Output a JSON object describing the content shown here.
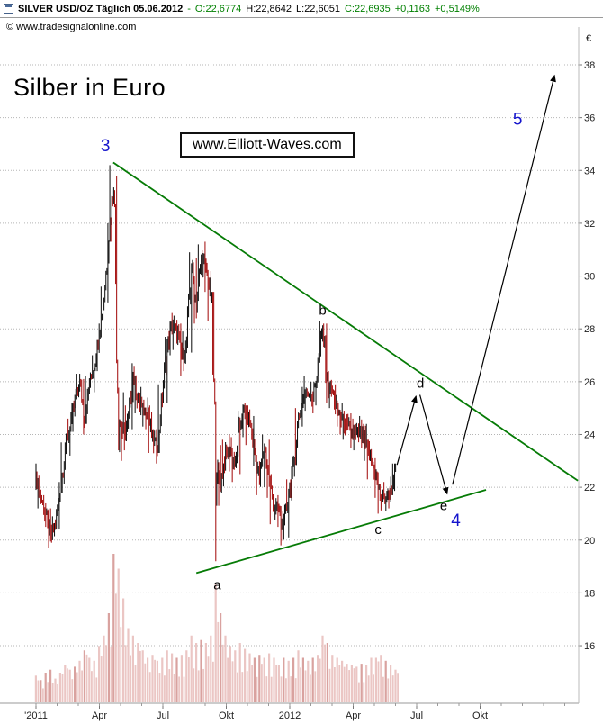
{
  "header": {
    "title": "SILVER USD/OZ Täglich 05.06.2012",
    "separator": "-",
    "open": "O:22,6774",
    "high": "H:22,8642",
    "low": "L:22,6051",
    "close": "C:22,6935",
    "change_abs": "+0,1163",
    "change_pct": "+0,5149%"
  },
  "copyright": "© www.tradesignalonline.com",
  "chart_title": "Silber in Euro",
  "watermark": "www.Elliott-Waves.com",
  "colors": {
    "up_green": "#008000",
    "wave_blue": "#1414cc",
    "trend_green": "#067b06",
    "candle_down_red": "#a51212",
    "candle_black": "#141414",
    "volume_pink": "#ebc6c4",
    "volume_pink_dark": "#d9a29f"
  },
  "axes": {
    "currency_symbol": "€",
    "y_ticks": [
      38,
      36,
      34,
      32,
      30,
      28,
      26,
      24,
      22,
      20,
      18,
      16
    ],
    "x_ticks": [
      "'2011",
      "Apr",
      "Jul",
      "Okt",
      "2012",
      "Apr",
      "Jul",
      "Okt"
    ]
  },
  "chart_data": {
    "type": "candlestick",
    "instrument": "SILVER USD/OZ",
    "quote_currency": "EUR",
    "timeframe": "Täglich",
    "last_bar": {
      "date": "05.06.2012",
      "open": 22.6774,
      "high": 22.8642,
      "low": 22.6051,
      "close": 22.6935,
      "change": 0.1163,
      "change_pct": 0.5149
    },
    "ylim": [
      15.5,
      38.8
    ],
    "x_start": "2011-01",
    "x_end_visible": "2012-12",
    "weekly": {
      "close": [
        22.4,
        21.6,
        21.0,
        20.1,
        20.6,
        21.9,
        23.4,
        24.3,
        25.2,
        26.0,
        24.6,
        25.9,
        26.6,
        27.8,
        29.2,
        31.5,
        33.6,
        24.7,
        24.0,
        24.5,
        26.3,
        25.3,
        24.9,
        24.9,
        23.8,
        23.5,
        25.5,
        27.3,
        28.2,
        27.9,
        26.9,
        27.4,
        30.4,
        28.9,
        30.6,
        30.2,
        29.3,
        22.7,
        22.2,
        23.2,
        23.4,
        22.8,
        24.5,
        24.9,
        24.5,
        23.3,
        22.3,
        23.6,
        22.3,
        21.2,
        21.1,
        20.4,
        21.9,
        22.7,
        24.6,
        25.4,
        25.6,
        25.4,
        26.5,
        28.0,
        25.9,
        25.6,
        24.9,
        24.6,
        24.3,
        24.1,
        24.0,
        24.1,
        23.6,
        23.0,
        22.4,
        21.5,
        21.6,
        21.8,
        22.7
      ],
      "high": [
        22.9,
        22.6,
        21.7,
        21.2,
        20.9,
        22.2,
        23.7,
        24.6,
        25.5,
        26.3,
        26.1,
        26.2,
        27.0,
        28.2,
        29.6,
        32.0,
        34.2,
        33.8,
        25.6,
        25.1,
        26.7,
        26.6,
        25.8,
        25.4,
        25.1,
        24.2,
        25.9,
        27.7,
        28.6,
        28.5,
        28.2,
        27.9,
        30.9,
        30.7,
        31.2,
        31.3,
        30.5,
        29.4,
        23.6,
        23.8,
        24.0,
        23.9,
        24.9,
        25.2,
        25.1,
        24.7,
        23.5,
        24.0,
        23.8,
        22.5,
        21.7,
        21.3,
        22.3,
        23.2,
        25.0,
        25.8,
        26.2,
        26.0,
        26.9,
        28.3,
        28.2,
        26.4,
        25.9,
        25.2,
        24.9,
        24.8,
        24.6,
        24.7,
        24.4,
        23.8,
        23.1,
        22.6,
        22.2,
        22.4,
        22.9
      ],
      "low": [
        21.9,
        21.2,
        20.5,
        19.7,
        19.9,
        20.4,
        21.8,
        23.2,
        24.1,
        25.0,
        24.0,
        24.4,
        25.6,
        26.4,
        27.6,
        29.0,
        31.3,
        23.4,
        23.0,
        23.4,
        24.2,
        24.8,
        24.3,
        24.2,
        23.3,
        22.9,
        23.3,
        25.2,
        27.0,
        27.2,
        26.2,
        26.4,
        27.1,
        28.2,
        28.6,
        29.4,
        28.3,
        19.2,
        21.3,
        21.8,
        22.6,
        22.2,
        22.5,
        23.9,
        23.6,
        22.8,
        21.7,
        22.0,
        21.6,
        20.6,
        20.5,
        19.8,
        20.1,
        21.5,
        22.4,
        24.3,
        24.9,
        24.8,
        25.1,
        26.2,
        25.2,
        25.0,
        24.3,
        24.0,
        23.8,
        23.5,
        23.4,
        23.5,
        23.0,
        22.3,
        21.6,
        21.0,
        21.1,
        21.2,
        21.7
      ],
      "volume": [
        0.18,
        0.15,
        0.2,
        0.22,
        0.16,
        0.2,
        0.25,
        0.22,
        0.24,
        0.28,
        0.35,
        0.3,
        0.28,
        0.38,
        0.45,
        0.6,
        1.0,
        0.9,
        0.7,
        0.5,
        0.45,
        0.4,
        0.35,
        0.3,
        0.32,
        0.28,
        0.3,
        0.35,
        0.33,
        0.3,
        0.32,
        0.35,
        0.45,
        0.4,
        0.42,
        0.4,
        0.45,
        0.8,
        0.6,
        0.45,
        0.38,
        0.35,
        0.4,
        0.36,
        0.33,
        0.3,
        0.32,
        0.3,
        0.33,
        0.3,
        0.25,
        0.3,
        0.28,
        0.3,
        0.35,
        0.3,
        0.28,
        0.3,
        0.32,
        0.45,
        0.4,
        0.32,
        0.3,
        0.28,
        0.26,
        0.25,
        0.24,
        0.26,
        0.25,
        0.3,
        0.3,
        0.32,
        0.28,
        0.25,
        0.22
      ]
    },
    "trendlines": [
      {
        "name": "upper-descending-line",
        "w1": 15.9,
        "p1": 34.3,
        "w2": 111.5,
        "p2": 22.25
      },
      {
        "name": "lower-ascending-line",
        "w1": 33.0,
        "p1": 18.75,
        "w2": 92.6,
        "p2": 21.9
      }
    ],
    "arrows": [
      {
        "name": "projection-up-to-d",
        "w1": 74.3,
        "p1": 22.85,
        "w2": 78.2,
        "p2": 25.45
      },
      {
        "name": "projection-down-to-e",
        "w1": 79.0,
        "p1": 25.5,
        "w2": 84.6,
        "p2": 21.75
      },
      {
        "name": "projection-wave-5",
        "w1": 85.7,
        "p1": 22.1,
        "w2": 106.7,
        "p2": 37.6
      }
    ],
    "wave_labels": [
      {
        "text": "3",
        "week": 14.3,
        "price": 34.9,
        "style": "blue"
      },
      {
        "text": "a",
        "week": 37.3,
        "price": 18.3,
        "style": "black"
      },
      {
        "text": "b",
        "week": 59.0,
        "price": 28.7,
        "style": "black"
      },
      {
        "text": "c",
        "week": 70.4,
        "price": 20.4,
        "style": "black"
      },
      {
        "text": "d",
        "week": 79.1,
        "price": 25.95,
        "style": "black"
      },
      {
        "text": "e",
        "week": 83.9,
        "price": 21.3,
        "style": "black"
      },
      {
        "text": "4",
        "week": 86.4,
        "price": 20.7,
        "style": "blue"
      },
      {
        "text": "5",
        "week": 99.1,
        "price": 35.9,
        "style": "blue"
      }
    ]
  }
}
